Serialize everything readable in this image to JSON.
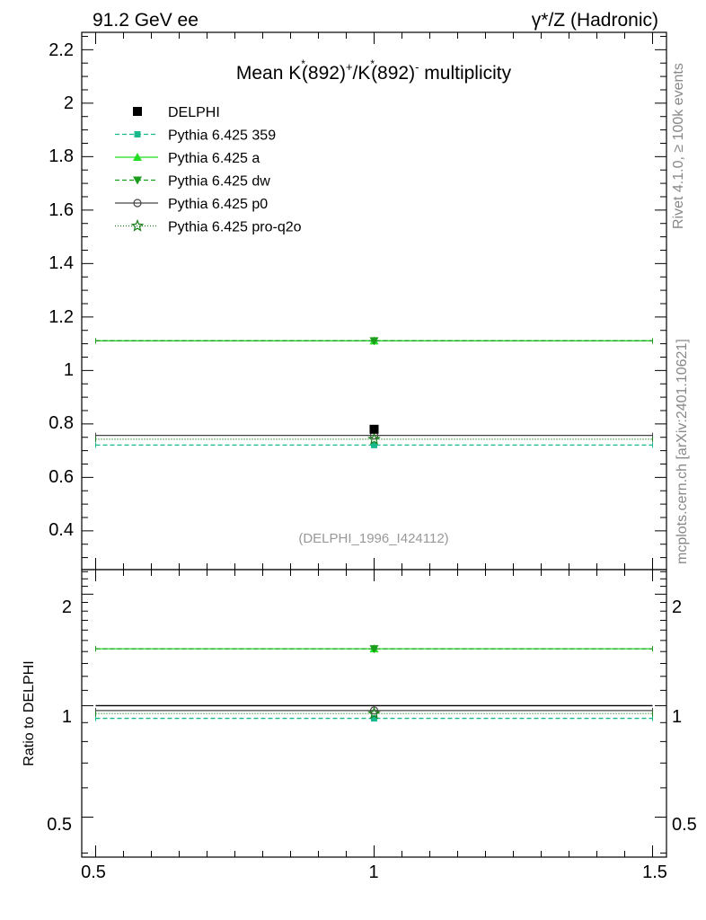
{
  "header": {
    "left": "91.2 GeV ee",
    "right": "γ*/Z (Hadronic)"
  },
  "side_labels": {
    "rivet": "Rivet 4.1.0, ≥ 100k events",
    "mcplots": "mcplots.cern.ch [arXiv:2401.10621]"
  },
  "chart_data": {
    "type": "line",
    "title": "Mean K*(892)⁺/K*(892)⁻ multiplicity",
    "title_parts": {
      "a": "Mean K",
      "star": "*",
      "b": "(892)",
      "plus": "+",
      "c": "/K",
      "d": "(892)",
      "minus": "-",
      "e": " multiplicity"
    },
    "watermark": "(DELPHI_1996_I424112)",
    "x": [
      0.5,
      1.0,
      1.5
    ],
    "xlim": [
      0.475,
      1.525
    ],
    "xticks": [
      "0.5",
      "1",
      "1.5"
    ],
    "main": {
      "ylim": [
        0.255,
        2.265
      ],
      "yticks": [
        "0.4",
        "0.6",
        "0.8",
        "1",
        "1.2",
        "1.4",
        "1.6",
        "1.8",
        "2",
        "2.2"
      ],
      "data": {
        "name": "DELPHI",
        "x": 1.0,
        "y": 0.78,
        "yerr": 0.01
      },
      "series": [
        {
          "name": "Pythia 6.425 359",
          "value": 0.721,
          "color": "#19b98e",
          "dash": "5,3",
          "marker": "square"
        },
        {
          "name": "Pythia 6.425 a",
          "value": 1.111,
          "color": "#22dd22",
          "dash": "",
          "marker": "triangle-up"
        },
        {
          "name": "Pythia 6.425 dw",
          "value": 1.111,
          "color": "#1a9d1a",
          "dash": "5,3",
          "marker": "triangle-down"
        },
        {
          "name": "Pythia 6.425 p0",
          "value": 0.757,
          "color": "#444444",
          "dash": "",
          "marker": "circle"
        },
        {
          "name": "Pythia 6.425 pro-q2o",
          "value": 0.743,
          "color": "#197f19",
          "dash": "1,2",
          "marker": "star"
        }
      ]
    },
    "ratio": {
      "ylabel": "Ratio to DELPHI",
      "scale": "log",
      "ylim": [
        0.39,
        2.33
      ],
      "yticks": [
        "0.5",
        "1",
        "2"
      ],
      "values": [
        0.924,
        1.424,
        1.424,
        0.97,
        0.952
      ]
    }
  }
}
